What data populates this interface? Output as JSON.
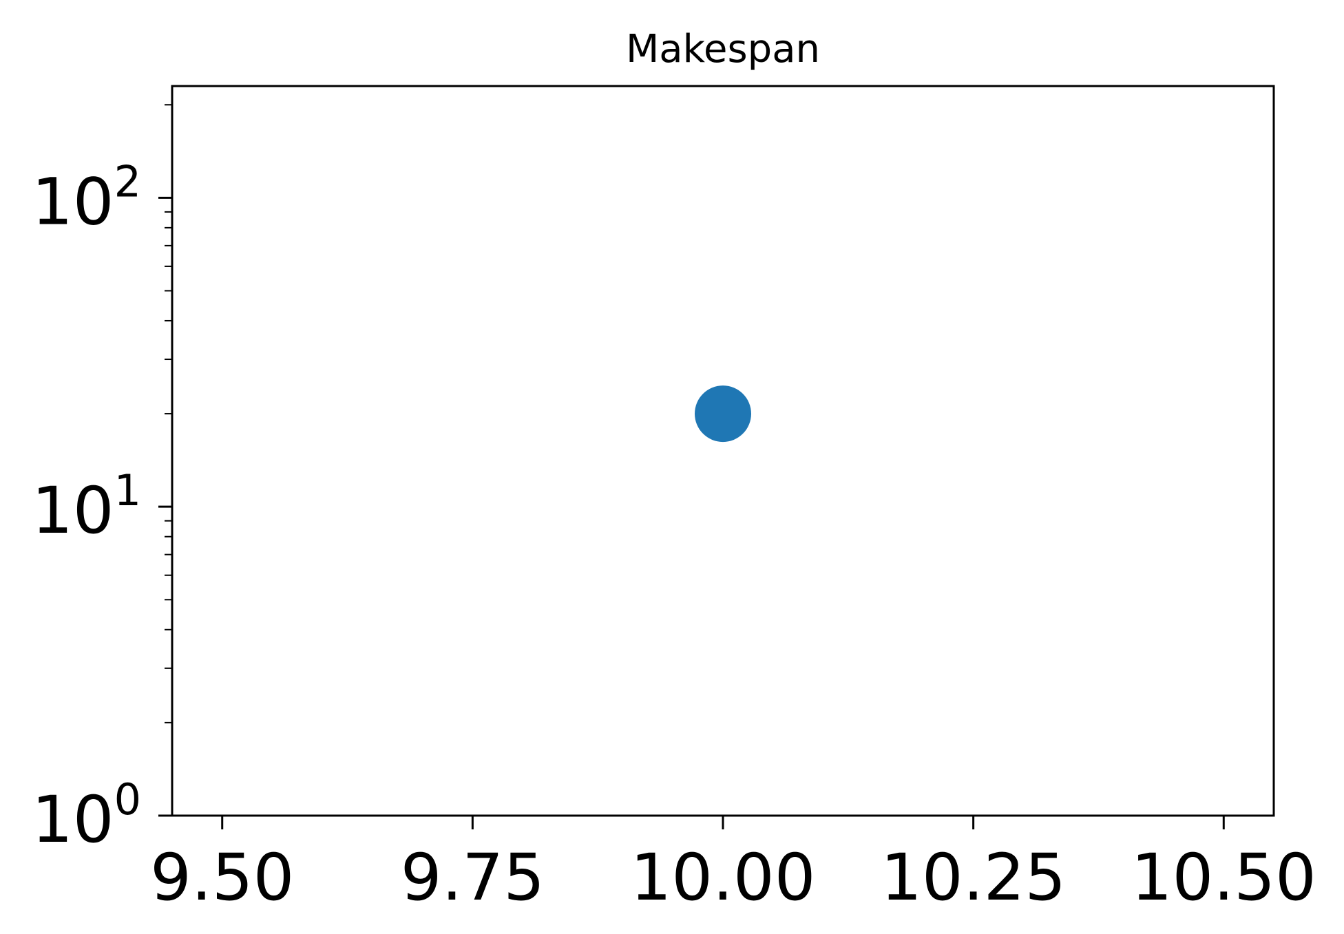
{
  "chart_data": {
    "type": "scatter",
    "title": "Makespan",
    "xlabel": "",
    "ylabel": "",
    "xlim": [
      9.45,
      10.55
    ],
    "ylim": [
      1,
      230
    ],
    "yscale": "log",
    "grid": false,
    "x_ticks": [
      {
        "value": 9.5,
        "label": "9.50"
      },
      {
        "value": 9.75,
        "label": "9.75"
      },
      {
        "value": 10.0,
        "label": "10.00"
      },
      {
        "value": 10.25,
        "label": "10.25"
      },
      {
        "value": 10.5,
        "label": "10.50"
      }
    ],
    "y_ticks": [
      {
        "value": 1,
        "base": "10",
        "exp": "0"
      },
      {
        "value": 10,
        "base": "10",
        "exp": "1"
      },
      {
        "value": 100,
        "base": "10",
        "exp": "2"
      }
    ],
    "series": [
      {
        "color": "#1f77b4",
        "points": [
          {
            "x": 10.0,
            "y": 20
          }
        ]
      }
    ]
  }
}
